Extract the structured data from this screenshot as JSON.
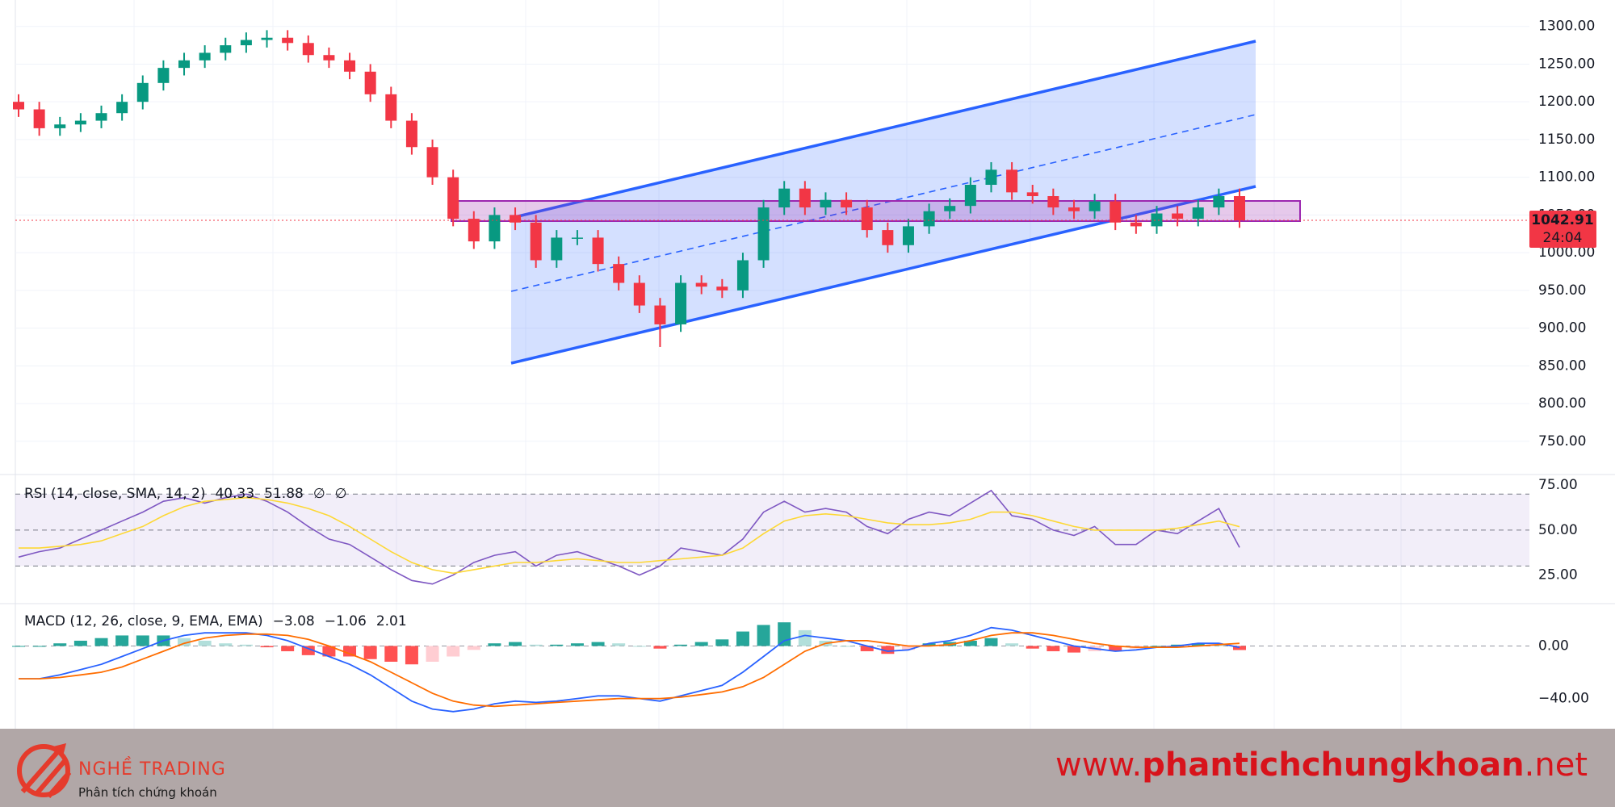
{
  "chart_data": [
    {
      "type": "candlestick",
      "open": [
        1200,
        1190,
        1165,
        1170,
        1175,
        1185,
        1200,
        1225,
        1245,
        1255,
        1265,
        1275,
        1282,
        1285,
        1278,
        1262,
        1255,
        1240,
        1210,
        1175,
        1140,
        1100,
        1045,
        1015,
        1050,
        1040,
        990,
        1020,
        1020,
        985,
        960,
        930,
        905,
        960,
        955,
        950,
        990,
        1060,
        1085,
        1060,
        1070,
        1060,
        1030,
        1010,
        1035,
        1055,
        1062,
        1090,
        1110,
        1080,
        1075,
        1060,
        1055,
        1068,
        1040,
        1035,
        1052,
        1045,
        1060,
        1075
      ],
      "high": [
        1210,
        1200,
        1180,
        1185,
        1195,
        1210,
        1235,
        1255,
        1265,
        1275,
        1285,
        1292,
        1295,
        1295,
        1288,
        1272,
        1265,
        1250,
        1220,
        1185,
        1150,
        1110,
        1055,
        1060,
        1060,
        1050,
        1030,
        1030,
        1030,
        995,
        970,
        940,
        970,
        970,
        965,
        1000,
        1070,
        1095,
        1095,
        1080,
        1080,
        1070,
        1040,
        1045,
        1065,
        1072,
        1100,
        1120,
        1120,
        1090,
        1085,
        1070,
        1078,
        1078,
        1050,
        1062,
        1062,
        1070,
        1085,
        1085
      ],
      "low": [
        1180,
        1155,
        1155,
        1160,
        1165,
        1175,
        1190,
        1215,
        1235,
        1245,
        1255,
        1265,
        1272,
        1268,
        1252,
        1245,
        1230,
        1200,
        1165,
        1130,
        1090,
        1035,
        1005,
        1005,
        1030,
        980,
        980,
        1010,
        975,
        950,
        920,
        875,
        895,
        945,
        940,
        940,
        980,
        1050,
        1050,
        1050,
        1050,
        1020,
        1000,
        1000,
        1025,
        1045,
        1052,
        1080,
        1070,
        1065,
        1050,
        1045,
        1045,
        1030,
        1025,
        1025,
        1035,
        1035,
        1050,
        1033
      ],
      "close": [
        1190,
        1165,
        1170,
        1175,
        1185,
        1200,
        1225,
        1245,
        1255,
        1265,
        1275,
        1282,
        1285,
        1278,
        1262,
        1255,
        1240,
        1210,
        1175,
        1140,
        1100,
        1045,
        1015,
        1050,
        1040,
        990,
        1020,
        1020,
        985,
        960,
        930,
        905,
        960,
        955,
        950,
        990,
        1060,
        1085,
        1060,
        1070,
        1060,
        1030,
        1010,
        1035,
        1055,
        1062,
        1090,
        1110,
        1080,
        1075,
        1060,
        1055,
        1068,
        1040,
        1035,
        1052,
        1045,
        1060,
        1075,
        1042.91
      ],
      "colors": {
        "up": "#089981",
        "down": "#f23645"
      },
      "last_close_label": "1042.91",
      "countdown": "24:04",
      "ylim": [
        707,
        1335
      ],
      "yticks": [
        {
          "value": 750,
          "label": "750.00"
        },
        {
          "value": 800,
          "label": "800.00"
        },
        {
          "value": 850,
          "label": "850.00"
        },
        {
          "value": 900,
          "label": "900.00"
        },
        {
          "value": 950,
          "label": "950.00"
        },
        {
          "value": 1000,
          "label": "1000.00"
        },
        {
          "value": 1050,
          "label": "1050.00"
        },
        {
          "value": 1100,
          "label": "1100.00"
        },
        {
          "value": 1150,
          "label": "1150.00"
        },
        {
          "value": 1200,
          "label": "1200.00"
        },
        {
          "value": 1250,
          "label": "1250.00"
        },
        {
          "value": 1300,
          "label": "1300.00"
        }
      ],
      "grid": true
    },
    {
      "type": "line",
      "title": "RSI (14, close, SMA, 14, 2)",
      "series": [
        {
          "color": "#7e57c2",
          "values": [
            35,
            38,
            40,
            45,
            50,
            55,
            60,
            66,
            68,
            65,
            68,
            70,
            66,
            60,
            52,
            45,
            42,
            35,
            28,
            22,
            20,
            25,
            32,
            36,
            38,
            30,
            36,
            38,
            34,
            30,
            25,
            30,
            40,
            38,
            36,
            45,
            60,
            66,
            60,
            62,
            60,
            52,
            48,
            56,
            60,
            58,
            65,
            72,
            58,
            56,
            50,
            47,
            52,
            42,
            42,
            50,
            48,
            55,
            62,
            40.33
          ],
          "last_label": "40.33"
        },
        {
          "color": "#fdd835",
          "values": [
            40,
            40,
            41,
            42,
            44,
            48,
            52,
            58,
            63,
            66,
            67,
            68,
            67,
            65,
            62,
            58,
            52,
            45,
            38,
            32,
            28,
            26,
            28,
            30,
            32,
            32,
            33,
            34,
            33,
            32,
            32,
            33,
            34,
            35,
            36,
            40,
            48,
            55,
            58,
            59,
            58,
            56,
            54,
            53,
            53,
            54,
            56,
            60,
            60,
            58,
            55,
            52,
            50,
            50,
            50,
            50,
            51,
            53,
            55,
            51.88
          ],
          "last_label": "51.88"
        }
      ],
      "na_labels": [
        "∅",
        "∅"
      ],
      "bands": [
        70,
        50,
        30
      ],
      "ylim": [
        10,
        80
      ],
      "yticks": [
        {
          "value": 25,
          "label": "25.00"
        },
        {
          "value": 50,
          "label": "50.00"
        },
        {
          "value": 75,
          "label": "75.00"
        }
      ]
    },
    {
      "type": "macd",
      "title": "MACD (12, 26, close, 9, EMA, EMA)",
      "histogram": {
        "values": [
          0,
          0,
          2,
          4,
          6,
          8,
          8,
          8,
          6,
          4,
          2,
          1,
          -1,
          -4,
          -7,
          -8,
          -8,
          -10,
          -12,
          -14,
          -12,
          -8,
          -3,
          2,
          3,
          1,
          1,
          2,
          3,
          2,
          0,
          -2,
          1,
          3,
          5,
          11,
          16,
          18,
          12,
          4,
          0,
          -4,
          -6,
          -3,
          2,
          3,
          4,
          6,
          2,
          -2,
          -4,
          -5,
          -4,
          -4,
          -2,
          0,
          1,
          2,
          1,
          -3.08
        ],
        "last_label": "−3.08",
        "colors": {
          "up_strong": "#26a69a",
          "up_weak": "#b2dfdb",
          "down_strong": "#ff5252",
          "down_weak": "#ffcdd2"
        }
      },
      "series": [
        {
          "color": "#2962ff",
          "values": [
            -25,
            -25,
            -22,
            -18,
            -14,
            -8,
            -2,
            4,
            8,
            10,
            10,
            10,
            8,
            4,
            -2,
            -8,
            -14,
            -22,
            -32,
            -42,
            -48,
            -50,
            -48,
            -44,
            -42,
            -43,
            -42,
            -40,
            -38,
            -38,
            -40,
            -42,
            -38,
            -34,
            -30,
            -20,
            -8,
            4,
            8,
            6,
            4,
            0,
            -4,
            -3,
            2,
            4,
            8,
            14,
            12,
            8,
            4,
            0,
            -2,
            -4,
            -3,
            -1,
            0,
            2,
            2,
            -1.06
          ],
          "last_label": "−1.06"
        },
        {
          "color": "#ff6d00",
          "values": [
            -25,
            -25,
            -24,
            -22,
            -20,
            -16,
            -10,
            -4,
            2,
            6,
            8,
            9,
            9,
            8,
            5,
            0,
            -6,
            -12,
            -20,
            -28,
            -36,
            -42,
            -45,
            -46,
            -45,
            -44,
            -43,
            -42,
            -41,
            -40,
            -40,
            -40,
            -39,
            -37,
            -35,
            -31,
            -24,
            -14,
            -4,
            2,
            4,
            4,
            2,
            0,
            0,
            1,
            4,
            8,
            10,
            10,
            8,
            5,
            2,
            0,
            -1,
            -1,
            -1,
            0,
            1,
            2.01
          ],
          "last_label": "2.01"
        }
      ],
      "ylim": [
        -63,
        31
      ],
      "yticks": [
        {
          "value": -40,
          "label": "−40.00"
        },
        {
          "value": 0,
          "label": "0.00"
        }
      ]
    }
  ],
  "footer": {
    "brand": "NGHỀ TRADING",
    "tagline": "Phân tích chứng khoán",
    "url_prefix": "www.",
    "url_domain": "phantichchungkhoan",
    "url_suffix": ".net"
  }
}
